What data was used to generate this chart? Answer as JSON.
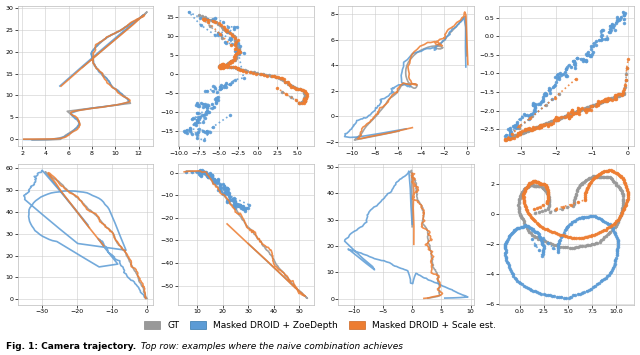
{
  "colors": {
    "gt": "#999999",
    "zoe": "#5b9bd5",
    "scale": "#ed7d31"
  },
  "legend_labels": [
    "GT",
    "Masked DROID + ZoeDepth",
    "Masked DROID + Scale est."
  ],
  "background_color": "#ffffff",
  "grid_color": "#cccccc",
  "caption_bold": "Fig. 1: Camera trajectory.",
  "caption_italic": " Top row: examples where the naive combination achieves"
}
